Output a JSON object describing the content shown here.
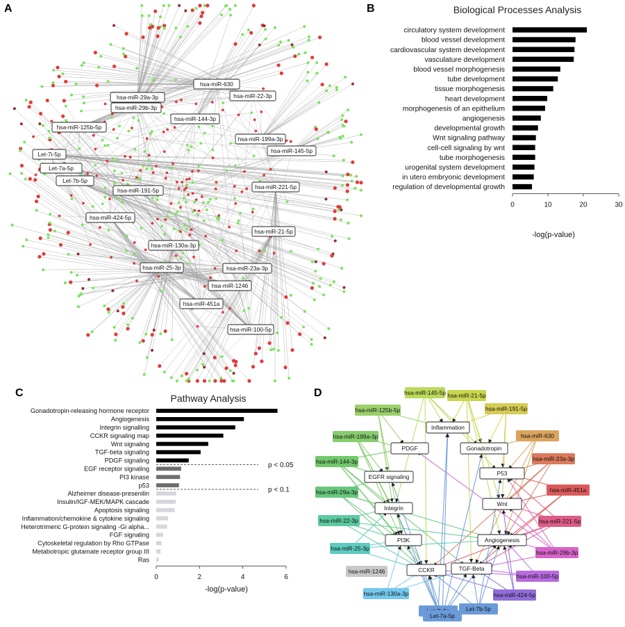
{
  "panel_letters": [
    "A",
    "B",
    "C",
    "D"
  ],
  "chart_data": [
    {
      "panel": "A",
      "type": "network",
      "labels": [
        "hsa-miR-630",
        "hsa-miR-22-3p",
        "hsa-miR-29a-3p",
        "hsa-miR-29b-3p",
        "hsa-miR-144-3p",
        "hsa-miR-125b-5p",
        "hsa-miR-199a-3p",
        "hsa-miR-145-5p",
        "Let-7i-5p",
        "Let-7a-5p",
        "Let-7b-5p",
        "hsa-miR-191-5p",
        "hsa-miR-221-5p",
        "hsa-miR-424-5p",
        "hsa-miR-21-5p",
        "hsa-miR-130a-3p",
        "hsa-miR-25-3p",
        "hsa-miR-23a-3p",
        "hsa-miR-1246",
        "hsa-miR-451a",
        "hsa-miR-100-5p"
      ],
      "node_colors": [
        "#e03a3a",
        "#7be35a",
        "#9a2a2a"
      ]
    },
    {
      "panel": "B",
      "type": "bar",
      "orientation": "horizontal",
      "title": "Biological Processes Analysis",
      "xlabel": "-log(p-value)",
      "xlim": [
        0,
        30
      ],
      "xticks": [
        0,
        10,
        20,
        30
      ],
      "categories": [
        "circulatory system development",
        "blood vessel development",
        "cardiovascular system development",
        "vasculature development",
        "blood vessel morphogenesis",
        "tube development",
        "tissue morphogenesis",
        "heart development",
        "morphogenesis of an epithelium",
        "angiogenesis",
        "developmental growth",
        "Wnt signaling pathway",
        "cell-cell signaling by wnt",
        "tube morphogenesis",
        "urogenital system development",
        "in utero embryonic development",
        "regulation of developmental growth"
      ],
      "values": [
        21.0,
        17.8,
        17.5,
        17.3,
        13.5,
        12.8,
        11.5,
        9.8,
        9.2,
        8.0,
        7.2,
        6.6,
        6.4,
        6.4,
        6.2,
        6.0,
        5.5
      ],
      "bar_color": "#000000"
    },
    {
      "panel": "C",
      "type": "bar",
      "orientation": "horizontal",
      "title": "Pathway Analysis",
      "xlabel": "-log(p-value)",
      "xlim": [
        0,
        6
      ],
      "xticks": [
        0,
        2,
        4,
        6
      ],
      "categories": [
        "Gonadotropin-releasing hormone receptor",
        "Angiogenesis",
        "Integrin signalling",
        "CCKR signaling map",
        "Wnt signaling",
        "TGF-beta signaling",
        "PDGF signaling",
        "EGF receptor signaling",
        "PI3 kinase",
        "p53",
        "Alzheimer disease-presenilin",
        "Insulin/IGF-MEK/MAPK cascade",
        "Apoptosis signaling",
        "Inflammation/chemokine & cytokine signaling",
        "Heterotrimeric G-protein signaling -Gi alpha...",
        "FGF signaling",
        "Cytoskeletal regulation by Rho GTPase",
        "Metabotropic glutamate receptor group III",
        "Ras"
      ],
      "values": [
        5.6,
        4.05,
        3.65,
        3.1,
        2.4,
        2.05,
        1.5,
        1.15,
        1.1,
        1.05,
        0.92,
        0.9,
        0.85,
        0.55,
        0.5,
        0.32,
        0.25,
        0.2,
        0.12
      ],
      "tiers": [
        0,
        0,
        0,
        0,
        0,
        0,
        0,
        1,
        1,
        1,
        2,
        2,
        2,
        2,
        2,
        2,
        2,
        2,
        2
      ],
      "tier_colors": [
        "#000000",
        "#6e6e6e",
        "#d6d6dc"
      ],
      "thresholds": [
        {
          "label": "p < 0.05",
          "after_index": 6
        },
        {
          "label": "p < 0.1",
          "after_index": 9
        }
      ]
    },
    {
      "panel": "D",
      "type": "network",
      "pathway_nodes": [
        "Inflammation",
        "PDGF",
        "Gonadotropin",
        "P53",
        "EGFR signaling",
        "Wnt",
        "Integrin",
        "Angiogenesis",
        "PI3K",
        "CCKR",
        "TGF-Beta"
      ],
      "mirna_nodes": [
        {
          "label": "hsa-miR-145-5p",
          "color": "#bcd95a"
        },
        {
          "label": "hsa-miR-21-5p",
          "color": "#c8d64f"
        },
        {
          "label": "hsa-miR-125b-5p",
          "color": "#9bd06a"
        },
        {
          "label": "hsa-miR-191-5p",
          "color": "#d6cc55"
        },
        {
          "label": "hsa-miR-199a-3p",
          "color": "#86cd6d"
        },
        {
          "label": "hsa-miR-630",
          "color": "#d9a45e"
        },
        {
          "label": "hsa-miR-144-3p",
          "color": "#72c86b"
        },
        {
          "label": "hsa-miR-23a-3p",
          "color": "#db7a5c"
        },
        {
          "label": "hsa-miR-451a",
          "color": "#dc5a5a"
        },
        {
          "label": "hsa-miR-29a-3p",
          "color": "#68c77c"
        },
        {
          "label": "hsa-miR-22-3p",
          "color": "#5ccaa0"
        },
        {
          "label": "hsa-miR-221-5p",
          "color": "#de5d86"
        },
        {
          "label": "hsa-miR-29b-3p",
          "color": "#d764c9"
        },
        {
          "label": "hsa-miR-25-3p",
          "color": "#5ecbbe"
        },
        {
          "label": "hsa-miR-1246",
          "color": "#c9c9c9"
        },
        {
          "label": "hsa-miR-100-5p",
          "color": "#b86ae0"
        },
        {
          "label": "hsa-miR-130a-3p",
          "color": "#74c8ee"
        },
        {
          "label": "hsa-miR-424-5p",
          "color": "#8f6ddb"
        },
        {
          "label": "Let-7i-5p",
          "color": "#6a9bd8"
        },
        {
          "label": "Let-7a-5p",
          "color": "#6a9bd8"
        },
        {
          "label": "Let-7b-5p",
          "color": "#6a9bd8"
        }
      ]
    }
  ]
}
